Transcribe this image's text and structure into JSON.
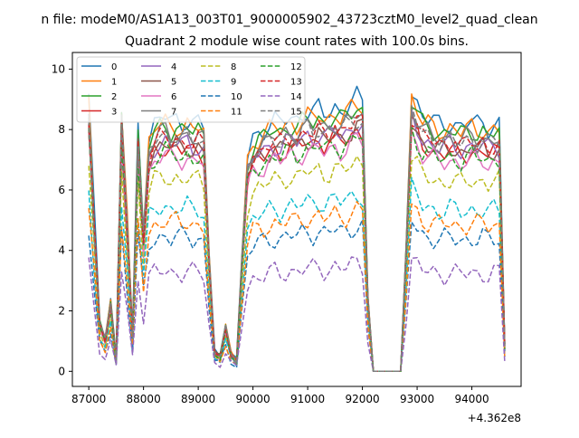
{
  "figure": {
    "suptitle": "n file: modeM0/AS1A13_003T01_9000005902_43723cztM0_level2_quad_clean",
    "offset_label": "+4.362e8"
  },
  "chart_data": {
    "type": "line",
    "title": "Quadrant 2 module wise count rates with 100.0s bins.",
    "xlabel": "",
    "ylabel": "",
    "xlim": [
      86700,
      94900
    ],
    "ylim": [
      -0.5,
      10.55
    ],
    "x_ticks": [
      87000,
      88000,
      89000,
      90000,
      91000,
      92000,
      93000,
      94000
    ],
    "x_tick_labels": [
      "87000",
      "88000",
      "89000",
      "90000",
      "91000",
      "92000",
      "93000",
      "94000"
    ],
    "y_ticks": [
      0,
      2,
      4,
      6,
      8,
      10
    ],
    "y_tick_labels": [
      "0",
      "2",
      "4",
      "6",
      "8",
      "10"
    ],
    "grid": false,
    "legend_position": "top-left",
    "legend_columns": 4,
    "series": [
      {
        "name": "0",
        "color": "#1f77b4",
        "style": "solid",
        "level": 8.6
      },
      {
        "name": "1",
        "color": "#ff7f0e",
        "style": "solid",
        "level": 8.4
      },
      {
        "name": "2",
        "color": "#2ca02c",
        "style": "solid",
        "level": 8.3
      },
      {
        "name": "3",
        "color": "#d62728",
        "style": "solid",
        "level": 7.6
      },
      {
        "name": "4",
        "color": "#9467bd",
        "style": "solid",
        "level": 7.8
      },
      {
        "name": "5",
        "color": "#8c564b",
        "style": "solid",
        "level": 7.7
      },
      {
        "name": "6",
        "color": "#e377c2",
        "style": "solid",
        "level": 7.3
      },
      {
        "name": "7",
        "color": "#7f7f7f",
        "style": "solid",
        "level": 8.1
      },
      {
        "name": "8",
        "color": "#bcbd22",
        "style": "dashed",
        "level": 6.6
      },
      {
        "name": "9",
        "color": "#17becf",
        "style": "dashed",
        "level": 5.6
      },
      {
        "name": "10",
        "color": "#1f77b4",
        "style": "dashed",
        "level": 4.6
      },
      {
        "name": "11",
        "color": "#ff7f0e",
        "style": "dashed",
        "level": 5.1
      },
      {
        "name": "12",
        "color": "#2ca02c",
        "style": "dashed",
        "level": 7.4
      },
      {
        "name": "13",
        "color": "#d62728",
        "style": "dashed",
        "level": 7.9
      },
      {
        "name": "14",
        "color": "#9467bd",
        "style": "dashed",
        "level": 3.4
      },
      {
        "name": "15",
        "color": "#7f7f7f",
        "style": "dashed",
        "level": 8.0
      }
    ],
    "time_profile": {
      "x": [
        87000,
        87100,
        87200,
        87300,
        87400,
        87500,
        87600,
        87700,
        87800,
        87900,
        88000,
        88100,
        88200,
        88300,
        88400,
        88500,
        88600,
        88700,
        88800,
        88900,
        89000,
        89100,
        89200,
        89300,
        89400,
        89500,
        89600,
        89700,
        89800,
        89900,
        90000,
        90100,
        90200,
        90300,
        90400,
        90500,
        90600,
        90700,
        90800,
        90900,
        91000,
        91100,
        91200,
        91300,
        91400,
        91500,
        91600,
        91700,
        91800,
        91900,
        92000,
        92100,
        92200,
        92300,
        92400,
        92500,
        92600,
        92700,
        92800,
        92900,
        93000,
        93100,
        93200,
        93300,
        93400,
        93500,
        93600,
        93700,
        93800,
        93900,
        94000,
        94100,
        94200,
        94300,
        94400,
        94500,
        94600
      ],
      "relative_level": [
        1.05,
        0.6,
        0.2,
        0.13,
        0.28,
        0.05,
        1.0,
        0.6,
        0.15,
        0.95,
        0.55,
        0.9,
        0.95,
        0.97,
        0.98,
        0.96,
        0.97,
        0.96,
        0.97,
        0.95,
        0.96,
        0.94,
        0.45,
        0.08,
        0.06,
        0.18,
        0.07,
        0.04,
        0.45,
        0.83,
        0.9,
        0.92,
        0.93,
        0.95,
        0.96,
        0.95,
        0.97,
        0.98,
        0.97,
        0.99,
        1.0,
        0.99,
        1.01,
        0.99,
        1.0,
        1.02,
        1.0,
        1.01,
        1.03,
        1.05,
        1.04,
        0.3,
        0.0,
        0.0,
        0.0,
        0.0,
        0.0,
        0.0,
        0.5,
        1.08,
        1.03,
        0.98,
        0.97,
        0.96,
        0.95,
        0.95,
        0.96,
        0.95,
        0.94,
        0.95,
        0.96,
        0.95,
        0.96,
        0.94,
        0.95,
        0.95,
        0.1
      ]
    }
  }
}
